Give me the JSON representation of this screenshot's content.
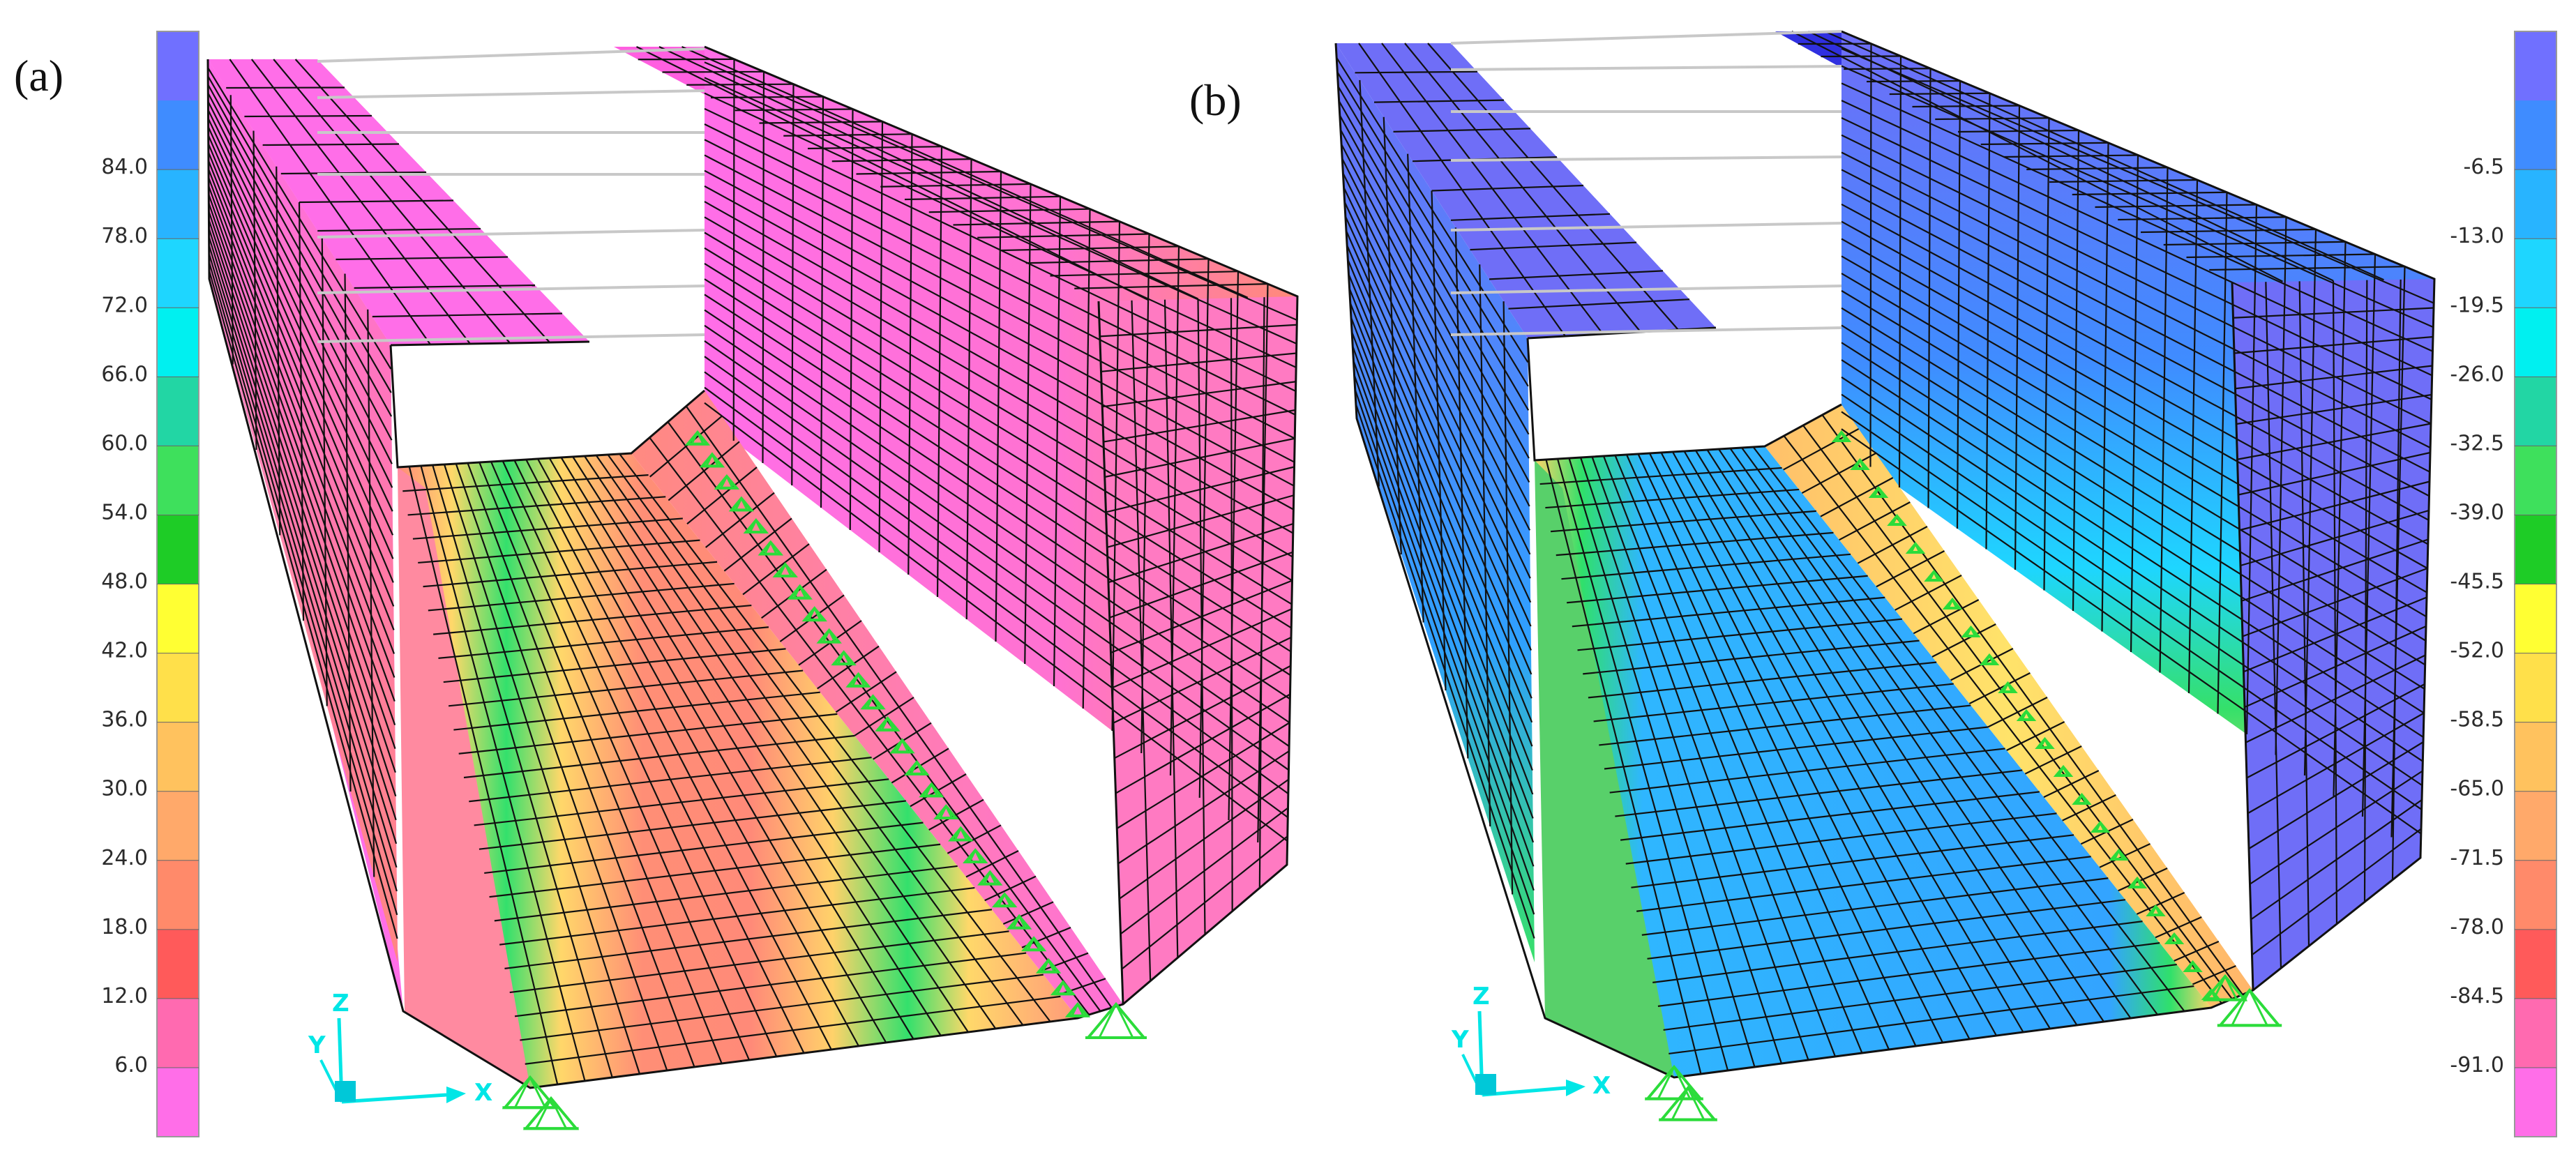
{
  "panels": [
    {
      "id": "a",
      "label": "(a)",
      "legend_ticks": [
        "84.0",
        "78.0",
        "72.0",
        "66.0",
        "60.0",
        "54.0",
        "48.0",
        "42.0",
        "36.0",
        "30.0",
        "24.0",
        "18.0",
        "12.0",
        "6.0"
      ],
      "legend_colors": [
        "#7070ff",
        "#3f8cff",
        "#28b4ff",
        "#1ed6ff",
        "#00f0f0",
        "#22d6a4",
        "#3ee05c",
        "#1ecc26",
        "#ffff33",
        "#ffe04a",
        "#ffc25e",
        "#ffa96a",
        "#ff8a6a",
        "#ff5a5a",
        "#ff6ab0",
        "#ff6ee8"
      ],
      "palette": {
        "side": "#ff74e6",
        "floor": "#ff8f78",
        "green": "#30e06a",
        "yellow": "#ffdf6a"
      }
    },
    {
      "id": "b",
      "label": "(b)",
      "legend_ticks": [
        "-6.5",
        "-13.0",
        "-19.5",
        "-26.0",
        "-32.5",
        "-39.0",
        "-45.5",
        "-52.0",
        "-58.5",
        "-65.0",
        "-71.5",
        "-78.0",
        "-84.5",
        "-91.0"
      ],
      "legend_colors": [
        "#7070ff",
        "#3f8cff",
        "#28b4ff",
        "#1ed6ff",
        "#00f0f0",
        "#22d6a4",
        "#3ee05c",
        "#1ecc26",
        "#ffff33",
        "#ffe04a",
        "#ffc25e",
        "#ffa96a",
        "#ff8a6a",
        "#ff5a5a",
        "#ff6ab0",
        "#ff6ee8"
      ],
      "palette": {
        "side": "#6f6ef7",
        "floor": "#38a6ff",
        "green": "#30e06a",
        "yellow": "#ffd86a"
      }
    }
  ],
  "axes_triad": {
    "x": "X",
    "y": "Y",
    "z": "Z",
    "color": "#00e6e6"
  },
  "support_color": "#2bdc3a",
  "tie_bar_color": "#c8c8c8"
}
